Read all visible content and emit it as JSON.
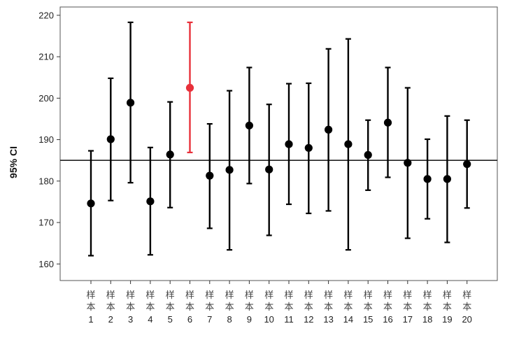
{
  "chart_data": {
    "type": "errorbar",
    "ylabel": "95% CI",
    "ylim": [
      156,
      222
    ],
    "yticks": [
      160,
      170,
      180,
      190,
      200,
      210,
      220
    ],
    "reference_line": 185,
    "category_prefix": "样本",
    "categories": [
      "1",
      "2",
      "3",
      "4",
      "5",
      "6",
      "7",
      "8",
      "9",
      "10",
      "11",
      "12",
      "13",
      "14",
      "15",
      "16",
      "17",
      "18",
      "19",
      "20"
    ],
    "means": [
      174.6,
      190.1,
      198.9,
      175.1,
      186.4,
      202.5,
      181.3,
      182.7,
      193.4,
      182.8,
      188.9,
      188.0,
      192.4,
      188.9,
      186.3,
      194.1,
      184.4,
      180.5,
      180.5,
      184.1
    ],
    "lower": [
      162.0,
      175.3,
      179.6,
      162.2,
      173.6,
      186.9,
      168.6,
      163.4,
      179.4,
      166.9,
      174.4,
      172.2,
      172.8,
      163.4,
      177.8,
      180.9,
      166.2,
      170.9,
      165.2,
      173.5
    ],
    "upper": [
      187.3,
      204.8,
      218.3,
      188.1,
      199.1,
      218.3,
      193.8,
      201.8,
      207.4,
      198.5,
      203.5,
      203.6,
      211.9,
      214.3,
      194.7,
      207.4,
      202.5,
      190.1,
      195.7,
      194.7
    ],
    "highlight_index": 5,
    "colors": {
      "normal": "#000000",
      "highlight": "#e8303a",
      "frame": "#555555"
    }
  }
}
